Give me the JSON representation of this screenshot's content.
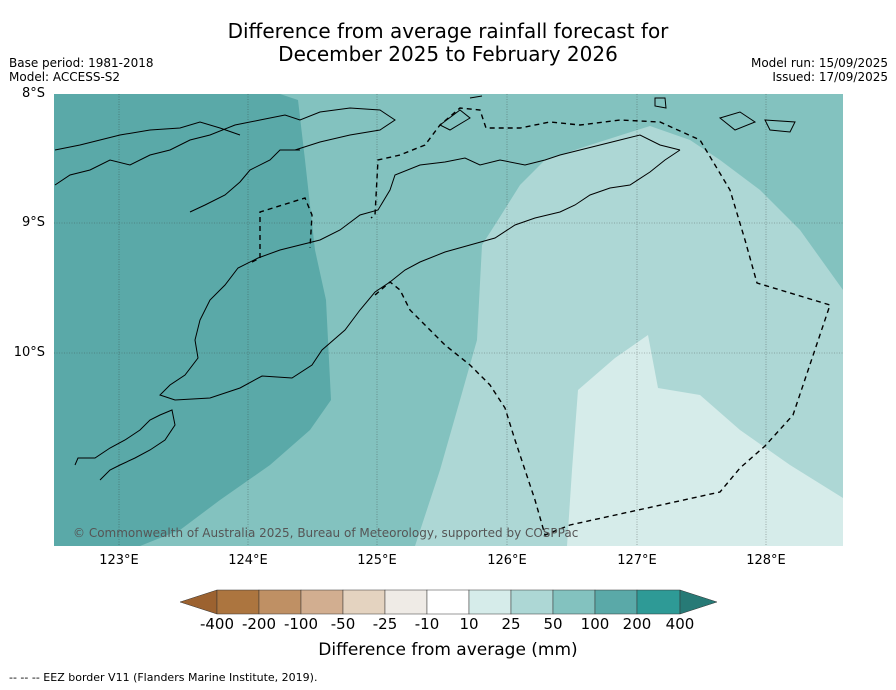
{
  "title": {
    "line1": "Difference from average rainfall forecast for",
    "line2": "December 2025 to February 2026"
  },
  "meta_left": {
    "base_period": "Base period: 1981-2018",
    "model": "Model: ACCESS-S2"
  },
  "meta_right": {
    "model_run": "Model run: 15/09/2025",
    "issued": "Issued: 17/09/2025"
  },
  "map": {
    "lat_labels": [
      "8°S",
      "9°S",
      "10°S"
    ],
    "lon_labels": [
      "123°E",
      "124°E",
      "125°E",
      "126°E",
      "127°E",
      "128°E"
    ],
    "copyright": "© Commonwealth of Australia 2025, Bureau of Meteorology, supported by COSPPac"
  },
  "colorbar": {
    "title": "Difference from average (mm)",
    "ticks": [
      "-400",
      "-200",
      "-100",
      "-50",
      "-25",
      "-10",
      "10",
      "25",
      "50",
      "100",
      "200",
      "400"
    ],
    "colors": [
      "#9c6230",
      "#ac753f",
      "#bf9064",
      "#d2ae90",
      "#e4d3c0",
      "#efebe6",
      "#ffffff",
      "#d6ecea",
      "#add7d5",
      "#83c2bf",
      "#5aa9a8",
      "#2e9a96",
      "#277a76"
    ]
  },
  "footnote": "--  --  -- EEZ border V11 (Flanders Marine Institute, 2019)."
}
